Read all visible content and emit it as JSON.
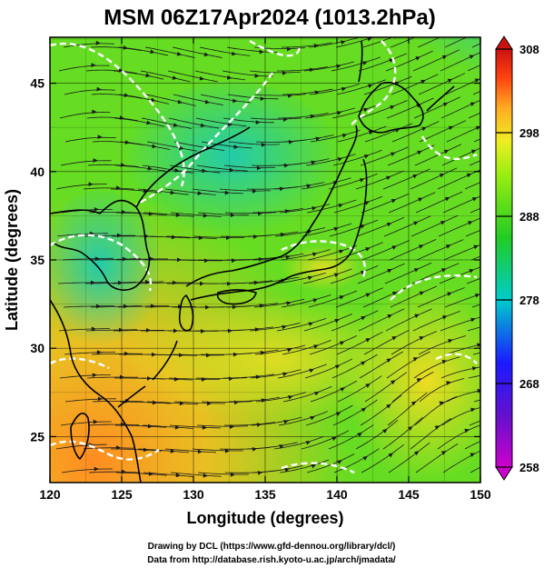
{
  "title": "MSM 06Z17Apr2024 (1013.2hPa)",
  "x_axis": {
    "label": "Longitude (degrees)",
    "ticks": [
      "120",
      "125",
      "130",
      "135",
      "140",
      "145",
      "150"
    ],
    "range": [
      120,
      150
    ]
  },
  "y_axis": {
    "label": "Latitude  (degrees)",
    "ticks": [
      "25",
      "30",
      "35",
      "40",
      "45"
    ],
    "range": [
      22.4,
      47.6
    ]
  },
  "colorbar": {
    "ticks": [
      "308",
      "298",
      "288",
      "278",
      "268",
      "258"
    ],
    "range": [
      258,
      308
    ],
    "colors": [
      "#cc00cc",
      "#1a1aff",
      "#00cccc",
      "#22cc22",
      "#99ee11",
      "#eeee22",
      "#ffaa22",
      "#ff4411",
      "#cc1111"
    ]
  },
  "credits": {
    "line1": "Drawing by DCL (https://www.gfd-dennou.org/library/dcl/)",
    "line2": "Data from http://database.rish.kyoto-u.ac.jp/arch/jmadata/"
  },
  "colors": {
    "coastline": "#000000",
    "isotherm": "#ffffff",
    "streamline": "#1a1a1a"
  }
}
